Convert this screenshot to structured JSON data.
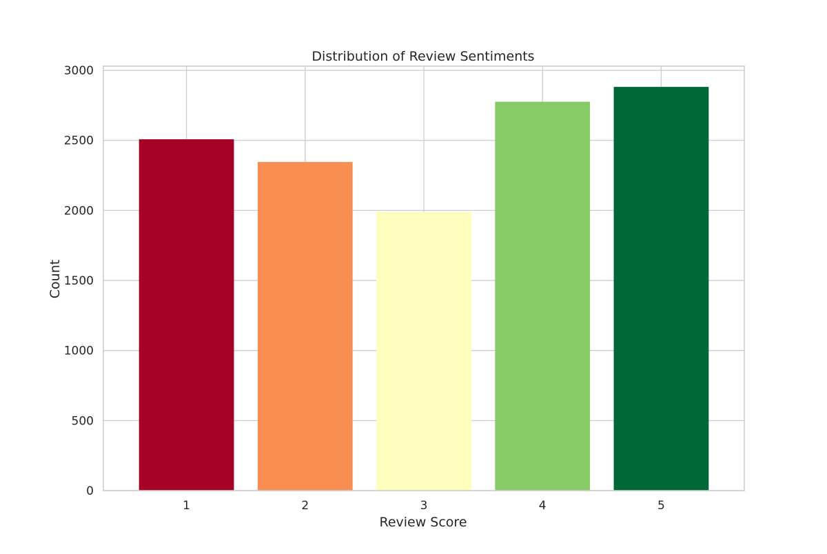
{
  "chart_data": {
    "type": "bar",
    "title": "Distribution of Review Sentiments",
    "xlabel": "Review Score",
    "ylabel": "Count",
    "categories": [
      "1",
      "2",
      "3",
      "4",
      "5"
    ],
    "values": [
      2508,
      2346,
      1990,
      2776,
      2882
    ],
    "colors": [
      "#a50026",
      "#f98e52",
      "#feffbe",
      "#86cb66",
      "#006837"
    ],
    "ylim": [
      0,
      3030
    ],
    "yticks": [
      0,
      500,
      1000,
      1500,
      2000,
      2500,
      3000
    ],
    "grid": true,
    "legend": "none"
  }
}
